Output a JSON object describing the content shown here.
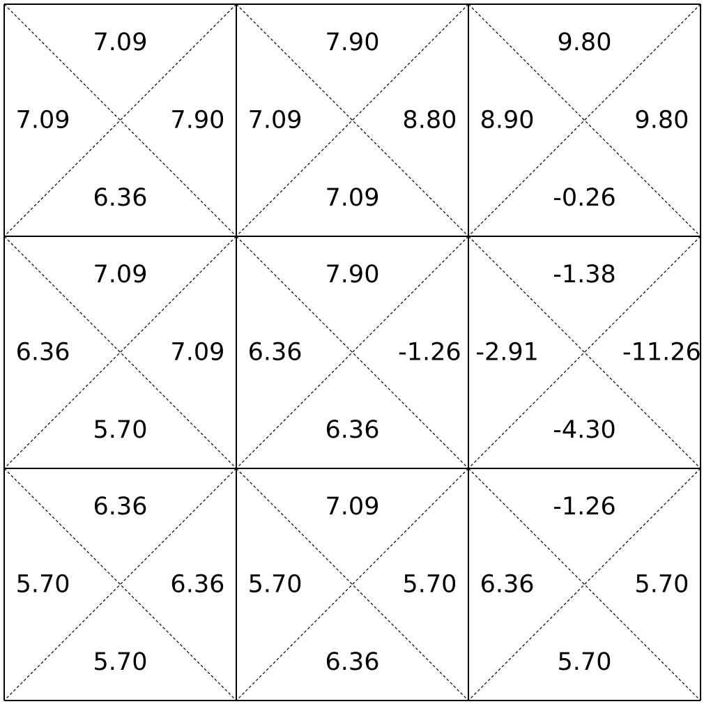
{
  "grid": {
    "rows": 3,
    "cols": 3,
    "line_color": "#000000",
    "background": "#ffffff",
    "cells": [
      [
        {
          "up": "7.09",
          "left": "7.09",
          "right": "7.90",
          "down": "6.36"
        },
        {
          "up": "7.90",
          "left": "7.09",
          "right": "8.80",
          "down": "7.09"
        },
        {
          "up": "9.80",
          "left": "8.90",
          "right": "9.80",
          "down": "-0.26"
        }
      ],
      [
        {
          "up": "7.09",
          "left": "6.36",
          "right": "7.09",
          "down": "5.70"
        },
        {
          "up": "7.90",
          "left": "6.36",
          "right": "-1.26",
          "down": "6.36"
        },
        {
          "up": "-1.38",
          "left": "-2.91",
          "right": "-11.26",
          "down": "-4.30"
        }
      ],
      [
        {
          "up": "6.36",
          "left": "5.70",
          "right": "6.36",
          "down": "5.70"
        },
        {
          "up": "7.09",
          "left": "5.70",
          "right": "5.70",
          "down": "6.36"
        },
        {
          "up": "-1.26",
          "left": "6.36",
          "right": "5.70",
          "down": "5.70"
        }
      ]
    ]
  }
}
